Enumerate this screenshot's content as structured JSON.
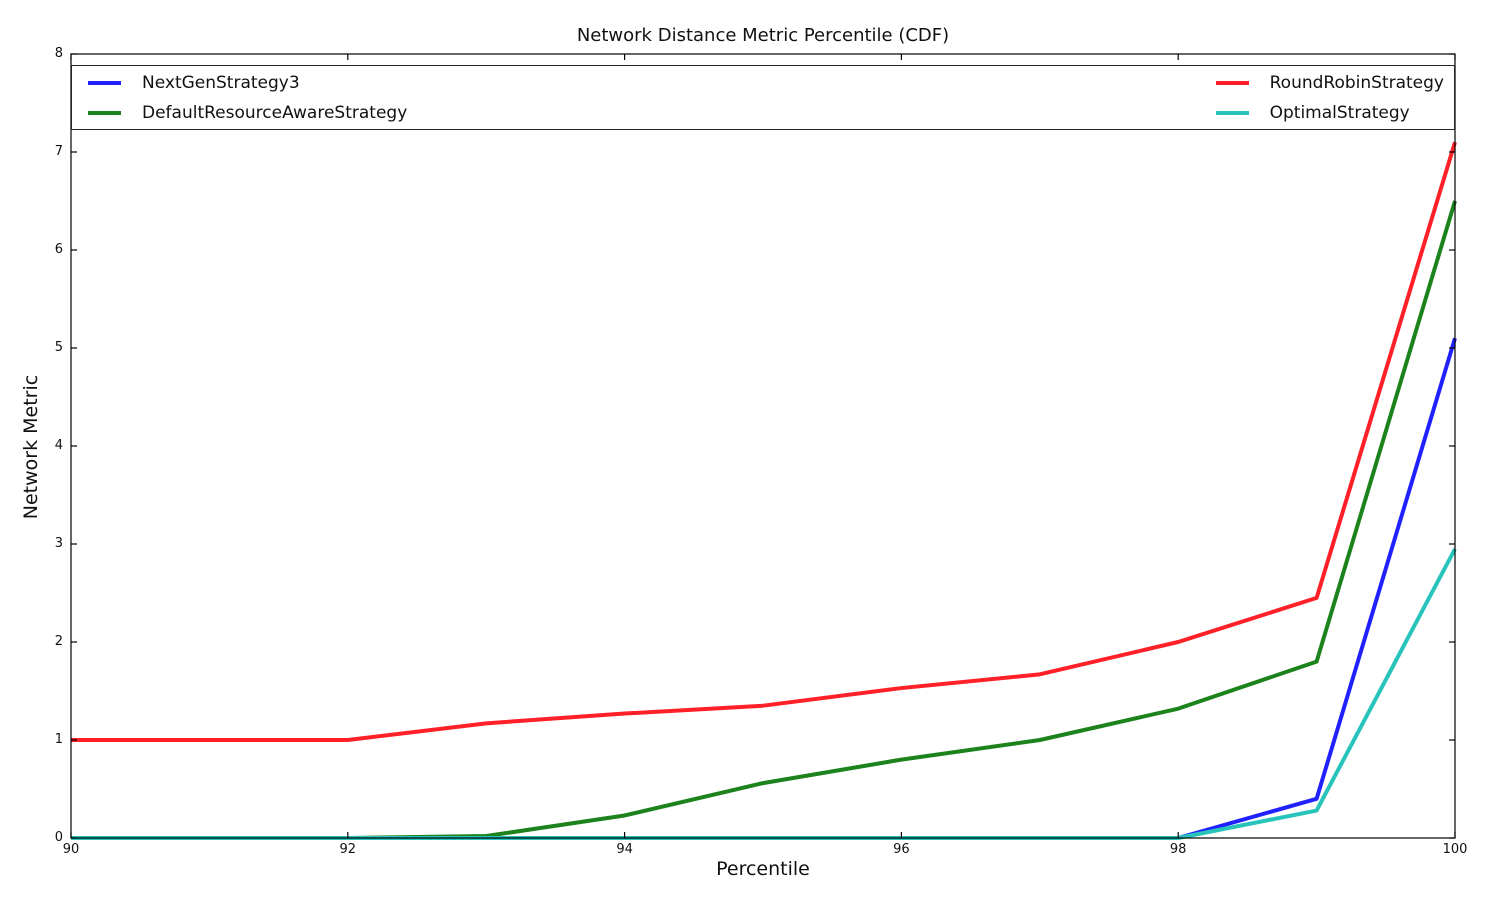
{
  "figure": {
    "background": "#ffffff",
    "spine_color": "#000000",
    "legend_border_color": "#262626"
  },
  "chart_data": {
    "type": "line",
    "title": "Network Distance Metric Percentile (CDF)",
    "xlabel": "Percentile",
    "ylabel": "Network Metric",
    "xlim": [
      90,
      100
    ],
    "ylim": [
      0,
      8
    ],
    "x_ticks": [
      90,
      92,
      94,
      96,
      98,
      100
    ],
    "y_ticks": [
      0,
      1,
      2,
      3,
      4,
      5,
      6,
      7,
      8
    ],
    "grid": false,
    "tick_direction": "in",
    "legend_position": "upper, inside plot, expanded full width, 2 columns",
    "line_width": 4,
    "x": [
      90,
      91,
      92,
      93,
      94,
      95,
      96,
      97,
      98,
      99,
      100
    ],
    "series": [
      {
        "name": "NextGenStrategy3",
        "color": "#2121ff",
        "legend_column": 1,
        "values": [
          0,
          0,
          0,
          0,
          0,
          0,
          0,
          0,
          0,
          0.4,
          5.1
        ]
      },
      {
        "name": "DefaultResourceAwareStrategy",
        "color": "#1c831c",
        "legend_column": 1,
        "values": [
          0,
          0,
          0,
          0.02,
          0.23,
          0.56,
          0.8,
          1.0,
          1.32,
          1.8,
          6.5
        ]
      },
      {
        "name": "RoundRobinStrategy",
        "color": "#ff2028",
        "legend_column": 2,
        "values": [
          1.0,
          1.0,
          1.0,
          1.17,
          1.27,
          1.35,
          1.53,
          1.67,
          2.0,
          2.45,
          7.1
        ]
      },
      {
        "name": "OptimalStrategy",
        "color": "#28c4bc",
        "legend_column": 2,
        "values": [
          0,
          0,
          0,
          0,
          0,
          0,
          0,
          0,
          0,
          0.28,
          2.95
        ]
      }
    ]
  }
}
